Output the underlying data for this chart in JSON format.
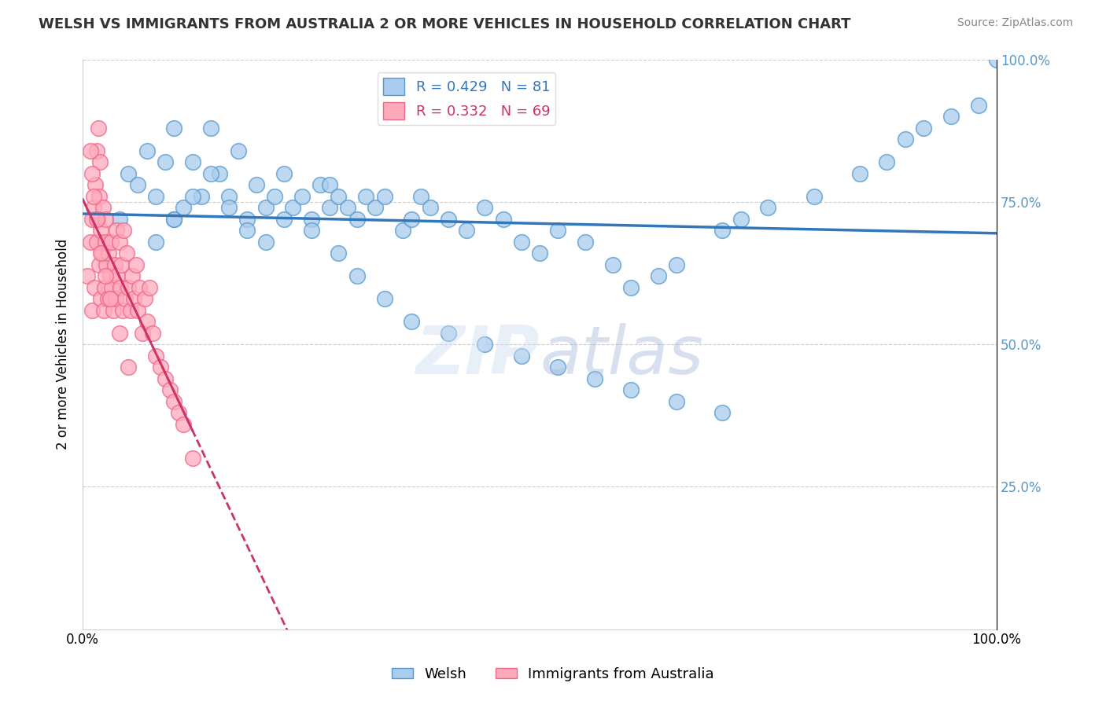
{
  "title": "WELSH VS IMMIGRANTS FROM AUSTRALIA 2 OR MORE VEHICLES IN HOUSEHOLD CORRELATION CHART",
  "source": "Source: ZipAtlas.com",
  "ylabel": "2 or more Vehicles in Household",
  "xlim": [
    0,
    1
  ],
  "ylim": [
    0,
    1
  ],
  "welsh_R": 0.429,
  "welsh_N": 81,
  "aus_R": 0.332,
  "aus_N": 69,
  "welsh_color": "#aaccee",
  "welsh_edge_color": "#5599cc",
  "aus_color": "#ffaabb",
  "aus_edge_color": "#ee6688",
  "welsh_line_color": "#3377bb",
  "aus_line_color": "#cc3366",
  "legend_welsh_label": "Welsh",
  "legend_aus_label": "Immigrants from Australia",
  "background_color": "#ffffff",
  "grid_color": "#cccccc",
  "watermark": "ZIPatlas",
  "right_tick_color": "#5599cc",
  "title_color": "#333333",
  "source_color": "#888888",
  "welsh_x": [
    0.02,
    0.04,
    0.05,
    0.06,
    0.07,
    0.08,
    0.09,
    0.1,
    0.1,
    0.11,
    0.12,
    0.13,
    0.14,
    0.15,
    0.16,
    0.17,
    0.18,
    0.19,
    0.2,
    0.21,
    0.22,
    0.23,
    0.24,
    0.25,
    0.26,
    0.27,
    0.27,
    0.28,
    0.29,
    0.3,
    0.31,
    0.32,
    0.33,
    0.35,
    0.36,
    0.37,
    0.38,
    0.4,
    0.42,
    0.44,
    0.46,
    0.48,
    0.5,
    0.52,
    0.55,
    0.58,
    0.6,
    0.63,
    0.65,
    0.7,
    0.72,
    0.75,
    0.8,
    0.85,
    0.88,
    0.9,
    0.92,
    0.95,
    0.98,
    1.0,
    0.08,
    0.1,
    0.12,
    0.14,
    0.16,
    0.18,
    0.2,
    0.22,
    0.25,
    0.28,
    0.3,
    0.33,
    0.36,
    0.4,
    0.44,
    0.48,
    0.52,
    0.56,
    0.6,
    0.65,
    0.7
  ],
  "welsh_y": [
    0.68,
    0.72,
    0.8,
    0.78,
    0.84,
    0.76,
    0.82,
    0.88,
    0.72,
    0.74,
    0.82,
    0.76,
    0.88,
    0.8,
    0.76,
    0.84,
    0.72,
    0.78,
    0.74,
    0.76,
    0.8,
    0.74,
    0.76,
    0.72,
    0.78,
    0.74,
    0.78,
    0.76,
    0.74,
    0.72,
    0.76,
    0.74,
    0.76,
    0.7,
    0.72,
    0.76,
    0.74,
    0.72,
    0.7,
    0.74,
    0.72,
    0.68,
    0.66,
    0.7,
    0.68,
    0.64,
    0.6,
    0.62,
    0.64,
    0.7,
    0.72,
    0.74,
    0.76,
    0.8,
    0.82,
    0.86,
    0.88,
    0.9,
    0.92,
    1.0,
    0.68,
    0.72,
    0.76,
    0.8,
    0.74,
    0.7,
    0.68,
    0.72,
    0.7,
    0.66,
    0.62,
    0.58,
    0.54,
    0.52,
    0.5,
    0.48,
    0.46,
    0.44,
    0.42,
    0.4,
    0.38
  ],
  "aus_x": [
    0.005,
    0.008,
    0.01,
    0.01,
    0.012,
    0.013,
    0.014,
    0.015,
    0.015,
    0.016,
    0.017,
    0.018,
    0.018,
    0.019,
    0.02,
    0.02,
    0.021,
    0.022,
    0.023,
    0.024,
    0.025,
    0.025,
    0.026,
    0.027,
    0.028,
    0.03,
    0.031,
    0.032,
    0.033,
    0.035,
    0.036,
    0.037,
    0.038,
    0.04,
    0.041,
    0.042,
    0.044,
    0.045,
    0.046,
    0.048,
    0.05,
    0.052,
    0.054,
    0.056,
    0.058,
    0.06,
    0.062,
    0.065,
    0.068,
    0.07,
    0.073,
    0.076,
    0.08,
    0.085,
    0.09,
    0.095,
    0.1,
    0.105,
    0.11,
    0.12,
    0.008,
    0.01,
    0.012,
    0.015,
    0.02,
    0.025,
    0.03,
    0.04,
    0.05
  ],
  "aus_y": [
    0.62,
    0.68,
    0.72,
    0.56,
    0.74,
    0.6,
    0.78,
    0.84,
    0.68,
    0.72,
    0.88,
    0.76,
    0.64,
    0.82,
    0.58,
    0.7,
    0.66,
    0.74,
    0.56,
    0.6,
    0.68,
    0.72,
    0.64,
    0.58,
    0.66,
    0.62,
    0.68,
    0.6,
    0.56,
    0.64,
    0.58,
    0.7,
    0.62,
    0.68,
    0.6,
    0.64,
    0.56,
    0.7,
    0.58,
    0.66,
    0.6,
    0.56,
    0.62,
    0.58,
    0.64,
    0.56,
    0.6,
    0.52,
    0.58,
    0.54,
    0.6,
    0.52,
    0.48,
    0.46,
    0.44,
    0.42,
    0.4,
    0.38,
    0.36,
    0.3,
    0.84,
    0.8,
    0.76,
    0.72,
    0.66,
    0.62,
    0.58,
    0.52,
    0.46
  ]
}
